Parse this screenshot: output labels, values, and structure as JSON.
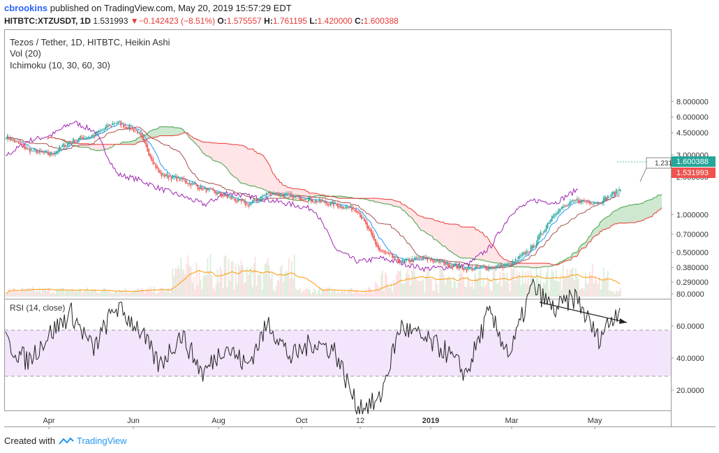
{
  "header": {
    "user": "cbrookins",
    "published": "published on TradingView.com, May 20, 2019 15:57:29 EDT",
    "symbol": "HITBTC:XTZUSDT, 1D",
    "last": "1.531993",
    "change": "−0.142423 (−8.51%)",
    "o_label": "O:",
    "o": "1.575557",
    "h_label": "H:",
    "h": "1.761195",
    "l_label": "L:",
    "l": "1.420000",
    "c_label": "C:",
    "c": "1.600388"
  },
  "legend": {
    "title": "Tezos / Tether, 1D, HITBTC, Heikin Ashi",
    "vol": "Vol (20)",
    "ichimoku": "Ichimoku (10, 30, 60, 30)",
    "rsi": "RSI (14, close)"
  },
  "price_axis": {
    "ticks": [
      "8.000000",
      "6.000000",
      "4.500000",
      "3.000000",
      "2.000000",
      "1.000000",
      "0.700000",
      "0.500000",
      "0.380000",
      "0.290000"
    ],
    "tick_values": [
      8,
      6,
      4.5,
      3,
      2,
      1,
      0.7,
      0.5,
      0.38,
      0.29
    ],
    "last_close_label": "1.600388",
    "last_price_label": "1.531993",
    "callout": "1.231"
  },
  "rsi_axis": {
    "ticks": [
      "80.0000",
      "60.0000",
      "40.0000",
      "20.0000"
    ],
    "tick_values": [
      80,
      60,
      40,
      20
    ],
    "band": [
      30,
      70
    ]
  },
  "time_axis": {
    "labels": [
      "Apr",
      "Jun",
      "Aug",
      "Oct",
      "12",
      "2019",
      "Mar",
      "May"
    ],
    "bold_label": "2019"
  },
  "footer": {
    "created": "Created with",
    "brand": "TradingView"
  },
  "colors": {
    "up": "#26a69a",
    "down": "#ef5350",
    "tenkan": "#2196f3",
    "kijun": "#a5514c",
    "chikou": "#9c27b0",
    "vol_ma": "#ff9800",
    "cloud_up": "#a5d6a7",
    "cloud_down": "#ffcdd2",
    "rsi_band": "#f3e5fc"
  },
  "chart_data": [
    {
      "type": "candlestick",
      "title": "Tezos / Tether, 1D, HITBTC, Heikin Ashi",
      "scale": "log",
      "ylim": [
        0.26,
        9
      ],
      "x_labels": [
        "Apr",
        "Jun",
        "Aug",
        "Oct",
        "12",
        "2019",
        "Mar",
        "May"
      ],
      "series": [
        {
          "name": "Close (approx.)",
          "x": [
            "2018-03-15",
            "2018-04-01",
            "2018-04-15",
            "2018-05-01",
            "2018-05-15",
            "2018-06-01",
            "2018-06-15",
            "2018-07-01",
            "2018-07-15",
            "2018-08-01",
            "2018-08-15",
            "2018-09-01",
            "2018-09-15",
            "2018-10-01",
            "2018-10-15",
            "2018-11-01",
            "2018-11-15",
            "2018-12-01",
            "2018-12-15",
            "2019-01-01",
            "2019-01-15",
            "2019-02-01",
            "2019-02-15",
            "2019-03-01",
            "2019-03-15",
            "2019-04-01",
            "2019-04-15",
            "2019-05-01",
            "2019-05-20"
          ],
          "values": [
            4.2,
            3.3,
            3.0,
            3.9,
            4.3,
            5.5,
            4.6,
            2.1,
            1.9,
            1.6,
            1.4,
            1.2,
            1.5,
            1.4,
            1.3,
            1.2,
            1.1,
            0.52,
            0.42,
            0.45,
            0.41,
            0.37,
            0.38,
            0.4,
            0.55,
            1.05,
            1.3,
            1.25,
            1.6
          ]
        }
      ]
    },
    {
      "type": "line",
      "title": "RSI (14, close)",
      "ylim": [
        0,
        100
      ],
      "series": [
        {
          "name": "RSI",
          "values": [
            50,
            38,
            55,
            68,
            45,
            72,
            60,
            35,
            55,
            30,
            48,
            35,
            62,
            40,
            50,
            45,
            10,
            12,
            60,
            52,
            45,
            30,
            68,
            42,
            85,
            70,
            78,
            52,
            72
          ]
        }
      ]
    }
  ]
}
